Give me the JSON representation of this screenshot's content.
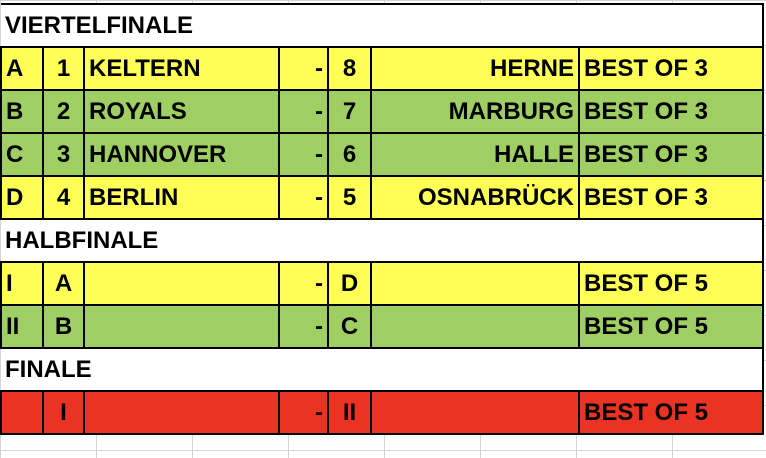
{
  "colors": {
    "quarter_a": "#ffff55",
    "green": "#9fce63",
    "final": "#ea3323"
  },
  "sections": [
    {
      "title": "VIERTELFINALE",
      "rows": [
        {
          "id": "A",
          "home_seed": "1",
          "home": "KELTERN",
          "sep": "-",
          "away_seed": "8",
          "away": "HERNE",
          "format": "BEST OF 3"
        },
        {
          "id": "B",
          "home_seed": "2",
          "home": "ROYALS",
          "sep": "-",
          "away_seed": "7",
          "away": "MARBURG",
          "format": "BEST OF 3"
        },
        {
          "id": "C",
          "home_seed": "3",
          "home": "HANNOVER",
          "sep": "-",
          "away_seed": "6",
          "away": "HALLE",
          "format": "BEST OF 3"
        },
        {
          "id": "D",
          "home_seed": "4",
          "home": "BERLIN",
          "sep": "-",
          "away_seed": "5",
          "away": "OSNABRÜCK",
          "format": "BEST OF 3"
        }
      ]
    },
    {
      "title": "HALBFINALE",
      "rows": [
        {
          "id": "I",
          "home_seed": "A",
          "home": "",
          "sep": "-",
          "away_seed": "D",
          "away": "",
          "format": "BEST OF 5"
        },
        {
          "id": "II",
          "home_seed": "B",
          "home": "",
          "sep": "-",
          "away_seed": "C",
          "away": "",
          "format": "BEST OF 5"
        }
      ]
    },
    {
      "title": "FINALE",
      "rows": [
        {
          "id": "",
          "home_seed": "I",
          "home": "",
          "sep": "-",
          "away_seed": "II",
          "away": "",
          "format": "BEST OF 5"
        }
      ]
    }
  ]
}
